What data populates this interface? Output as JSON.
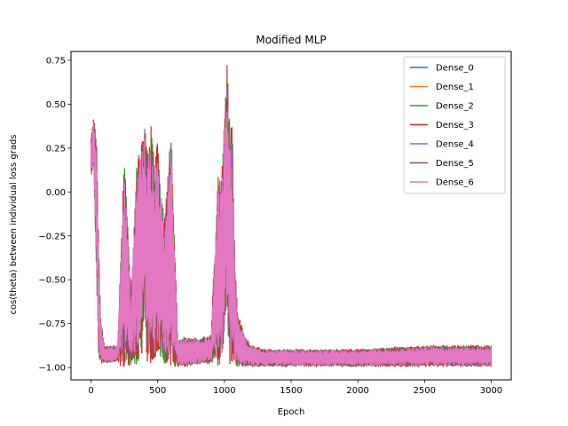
{
  "chart_data": {
    "type": "line",
    "title": "Modified MLP",
    "xlabel": "Epoch",
    "ylabel": "cos(theta) between individual loss grads",
    "xlim": [
      -150,
      3150
    ],
    "ylim": [
      -1.07,
      0.8
    ],
    "xticks": [
      0,
      500,
      1000,
      1500,
      2000,
      2500,
      3000
    ],
    "xtick_labels": [
      "0",
      "500",
      "1000",
      "1500",
      "2000",
      "2500",
      "3000"
    ],
    "yticks": [
      -1.0,
      -0.75,
      -0.5,
      -0.25,
      0.0,
      0.25,
      0.5,
      0.75
    ],
    "ytick_labels": [
      "−1.00",
      "−0.75",
      "−0.50",
      "−0.25",
      "0.00",
      "0.25",
      "0.50",
      "0.75"
    ],
    "grid": false,
    "legend_position": "top-right",
    "envelope": {
      "epochs": [
        0,
        20,
        40,
        55,
        70,
        100,
        150,
        200,
        250,
        300,
        340,
        380,
        400,
        420,
        450,
        480,
        500,
        550,
        600,
        620,
        650,
        700,
        800,
        900,
        950,
        980,
        1000,
        1020,
        1040,
        1060,
        1080,
        1100,
        1150,
        1200,
        1300,
        1500,
        2000,
        2500,
        3000
      ],
      "upper": [
        0.3,
        0.42,
        0.3,
        -0.2,
        -0.7,
        -0.88,
        -0.88,
        -0.88,
        0.2,
        -0.6,
        0.1,
        0.25,
        0.4,
        0.2,
        0.3,
        0.15,
        0.22,
        -0.2,
        0.32,
        -0.1,
        -0.85,
        -0.83,
        -0.84,
        -0.82,
        0.05,
        0.1,
        0.45,
        0.7,
        0.35,
        0.3,
        -0.45,
        -0.7,
        -0.82,
        -0.88,
        -0.9,
        -0.9,
        -0.9,
        -0.88,
        -0.88
      ],
      "lower": [
        0.1,
        0.15,
        -0.4,
        -0.9,
        -0.96,
        -0.97,
        -0.97,
        -0.96,
        -0.96,
        -0.96,
        -0.94,
        -0.9,
        -0.6,
        -0.95,
        -0.95,
        -0.97,
        -0.9,
        -0.95,
        -0.95,
        -0.97,
        -0.99,
        -0.99,
        -0.98,
        -0.97,
        -0.95,
        -0.95,
        -0.8,
        -0.65,
        -0.95,
        -0.97,
        -0.98,
        -0.99,
        -0.99,
        -0.99,
        -0.99,
        -0.99,
        -0.99,
        -0.99,
        -0.99
      ]
    },
    "series": [
      {
        "name": "Dense_0",
        "color": "#1f77b4",
        "scale": 0.95
      },
      {
        "name": "Dense_1",
        "color": "#ff7f0e",
        "scale": 0.96
      },
      {
        "name": "Dense_2",
        "color": "#2ca02c",
        "scale": 1.08
      },
      {
        "name": "Dense_3",
        "color": "#d62728",
        "scale": 1.12
      },
      {
        "name": "Dense_4",
        "color": "#9467bd",
        "scale": 0.98
      },
      {
        "name": "Dense_5",
        "color": "#8c564b",
        "scale": 1.0
      },
      {
        "name": "Dense_6",
        "color": "#e377c2",
        "scale": 0.94
      }
    ]
  }
}
